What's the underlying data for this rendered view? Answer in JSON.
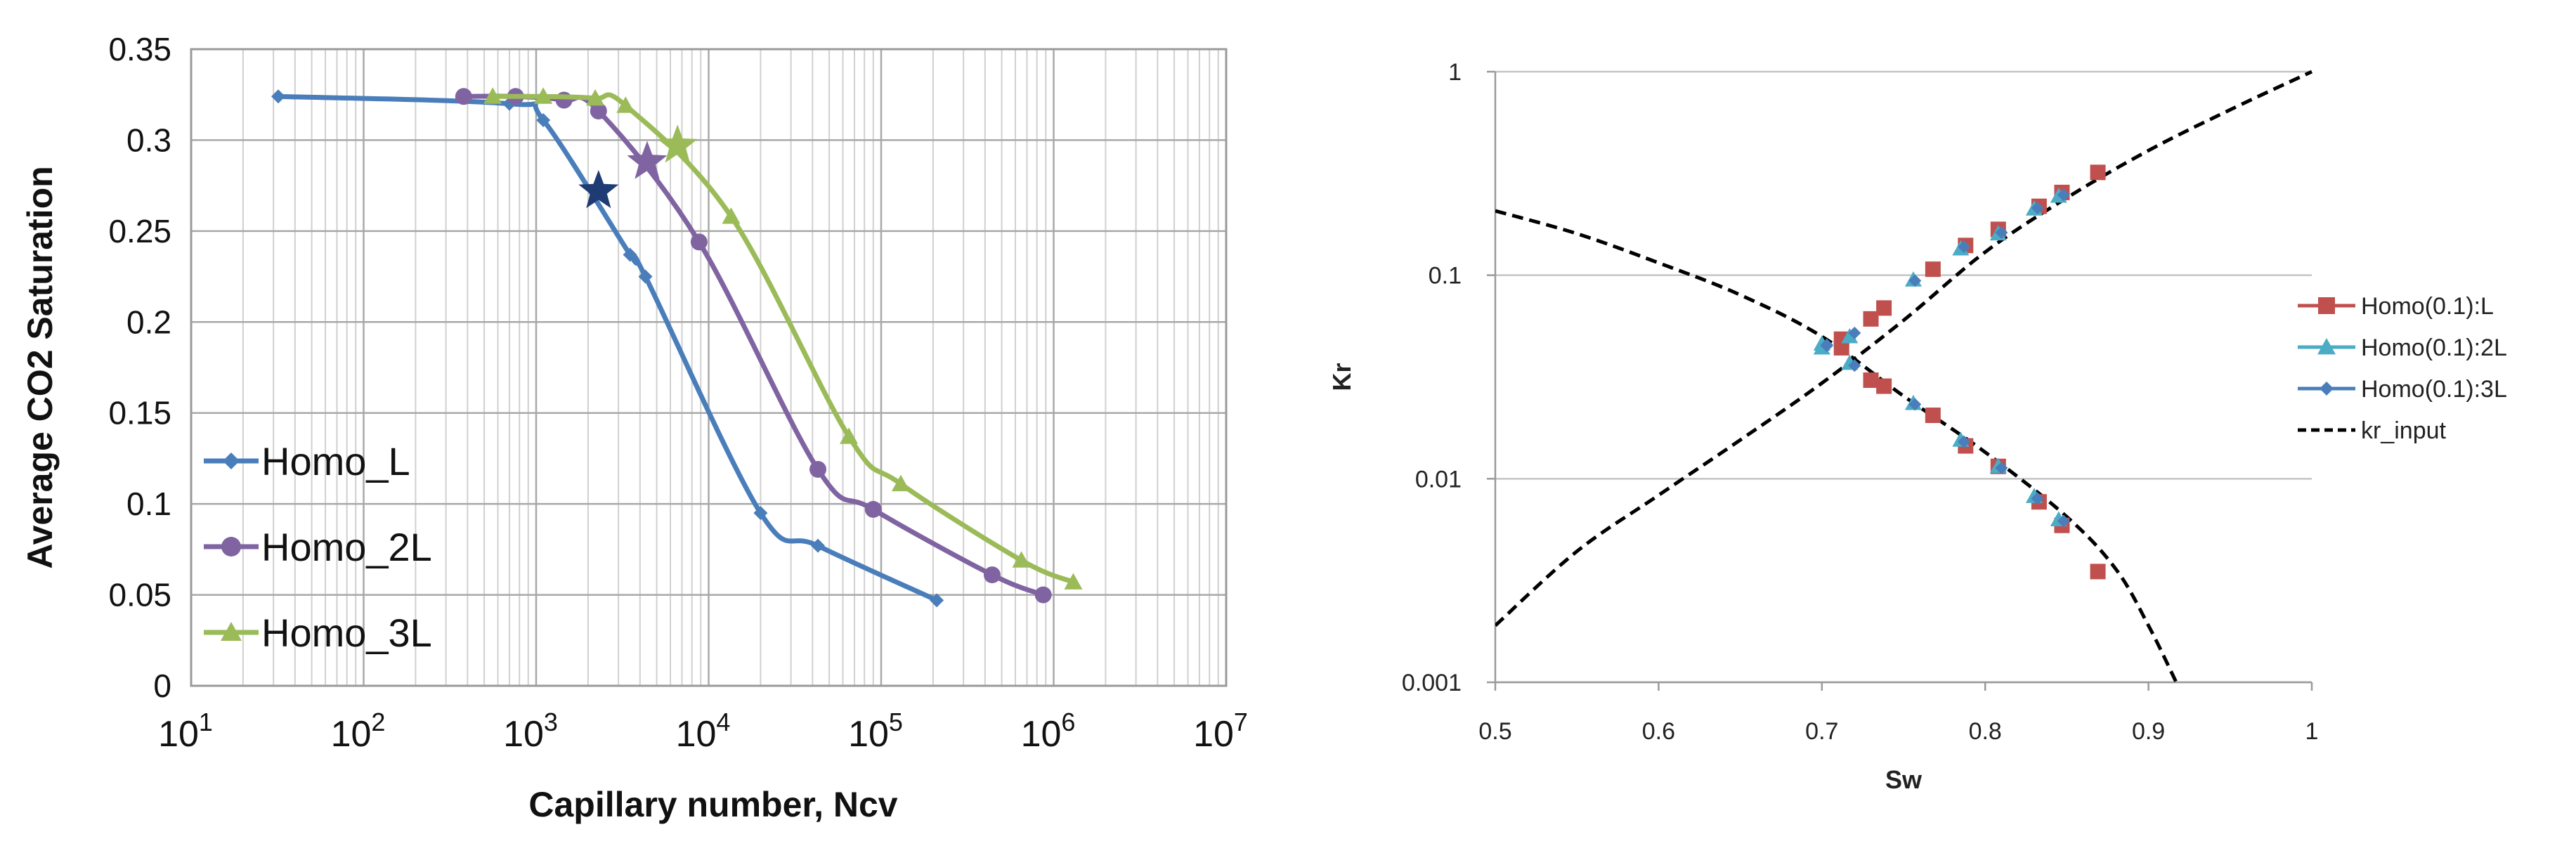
{
  "chart_data": [
    {
      "type": "line",
      "ylabel": "Average CO2 Saturation",
      "xlabel": "Capillary number, Ncv",
      "xscale": "log",
      "xlim": [
        10,
        10000000
      ],
      "ylim": [
        0,
        0.35
      ],
      "grid": "on",
      "legend_position": "lower-left",
      "yticks": [
        "0",
        "0.05",
        "0.1",
        "0.15",
        "0.2",
        "0.25",
        "0.3",
        "0.35"
      ],
      "xticks": [
        {
          "base": "10",
          "exp": "1",
          "value": 10
        },
        {
          "base": "10",
          "exp": "2",
          "value": 100
        },
        {
          "base": "10",
          "exp": "3",
          "value": 1000
        },
        {
          "base": "10",
          "exp": "4",
          "value": 10000
        },
        {
          "base": "10",
          "exp": "5",
          "value": 100000
        },
        {
          "base": "10",
          "exp": "6",
          "value": 1000000
        },
        {
          "base": "10",
          "exp": "7",
          "value": 10000000
        }
      ],
      "series": [
        {
          "name": "Homo_L",
          "color": "#4a7ebb",
          "marker": "diamond",
          "x": [
            32,
            700,
            1100,
            3500,
            4300,
            20000,
            43000,
            210000
          ],
          "y": [
            0.324,
            0.32,
            0.311,
            0.237,
            0.225,
            0.095,
            0.077,
            0.047
          ],
          "star": {
            "x": 2300,
            "y": 0.272,
            "color": "#1f3b73"
          }
        },
        {
          "name": "Homo_2L",
          "color": "#8064a2",
          "marker": "circle",
          "x": [
            380,
            760,
            1450,
            2300,
            8800,
            43000,
            90000,
            440000,
            870000
          ],
          "y": [
            0.324,
            0.324,
            0.322,
            0.316,
            0.244,
            0.119,
            0.097,
            0.061,
            0.05
          ],
          "star": {
            "x": 4400,
            "y": 0.288,
            "color": "#8064a2"
          }
        },
        {
          "name": "Homo_3L",
          "color": "#9bbb59",
          "marker": "triangle",
          "x": [
            560,
            1100,
            2200,
            3300,
            13500,
            65000,
            130000,
            650000,
            1300000
          ],
          "y": [
            0.324,
            0.324,
            0.323,
            0.319,
            0.258,
            0.137,
            0.111,
            0.069,
            0.057
          ],
          "star": {
            "x": 6600,
            "y": 0.297,
            "color": "#9bbb59"
          }
        }
      ]
    },
    {
      "type": "line",
      "ylabel": "Kr",
      "xlabel": "Sw",
      "yscale": "log",
      "xlim": [
        0.5,
        1
      ],
      "ylim": [
        0.001,
        1
      ],
      "grid": "horizontal",
      "legend_position": "right",
      "xticks": [
        "0.5",
        "0.6",
        "0.7",
        "0.8",
        "0.9",
        "1"
      ],
      "yticks": [
        "0.001",
        "0.01",
        "0.1",
        "1"
      ],
      "series": [
        {
          "name": "Homo(0.1):L",
          "color": "#c0504d",
          "marker": "square",
          "x": [
            0.712,
            0.73,
            0.738,
            0.768,
            0.788,
            0.808,
            0.833,
            0.847,
            0.869,
            0.712,
            0.73,
            0.738,
            0.768,
            0.788,
            0.808,
            0.833,
            0.847,
            0.869
          ],
          "y": [
            0.0485,
            0.061,
            0.069,
            0.107,
            0.14,
            0.168,
            0.218,
            0.255,
            0.32,
            0.044,
            0.0305,
            0.0285,
            0.0205,
            0.0145,
            0.0115,
            0.0077,
            0.0059,
            0.0035
          ]
        },
        {
          "name": "Homo(0.1):2L",
          "color": "#4bacc6",
          "marker": "triangle",
          "x": [
            0.7,
            0.717,
            0.756,
            0.785,
            0.808,
            0.83,
            0.845,
            0.7,
            0.717,
            0.756,
            0.785,
            0.808,
            0.83,
            0.845
          ],
          "y": [
            0.044,
            0.05,
            0.095,
            0.135,
            0.16,
            0.212,
            0.245,
            0.046,
            0.037,
            0.0235,
            0.0155,
            0.0115,
            0.0082,
            0.0063
          ]
        },
        {
          "name": "Homo(0.1):3L",
          "color": "#4a7ebb",
          "marker": "diamond",
          "x": [
            0.703,
            0.72,
            0.757,
            0.787,
            0.81,
            0.832,
            0.848,
            0.703,
            0.72,
            0.757,
            0.787,
            0.81,
            0.832,
            0.848
          ],
          "y": [
            0.045,
            0.052,
            0.094,
            0.138,
            0.162,
            0.214,
            0.248,
            0.0455,
            0.036,
            0.0232,
            0.0152,
            0.0113,
            0.008,
            0.0062
          ]
        },
        {
          "name": "kr_input",
          "color": "#000000",
          "style": "dashed",
          "curves": [
            {
              "x": [
                0.5,
                0.55,
                0.6,
                0.65,
                0.7,
                0.75,
                0.8,
                0.85,
                0.9,
                0.95,
                1.0
              ],
              "y": [
                0.0019,
                0.0044,
                0.0083,
                0.0155,
                0.0295,
                0.06,
                0.13,
                0.24,
                0.41,
                0.65,
                1.0
              ]
            },
            {
              "x": [
                0.5,
                0.55,
                0.6,
                0.65,
                0.7,
                0.75,
                0.8,
                0.85,
                0.88,
                0.9,
                0.917
              ],
              "y": [
                0.207,
                0.16,
                0.115,
                0.08,
                0.05,
                0.0255,
                0.0135,
                0.0065,
                0.0036,
                0.0019,
                0.001
              ]
            }
          ]
        }
      ]
    }
  ]
}
